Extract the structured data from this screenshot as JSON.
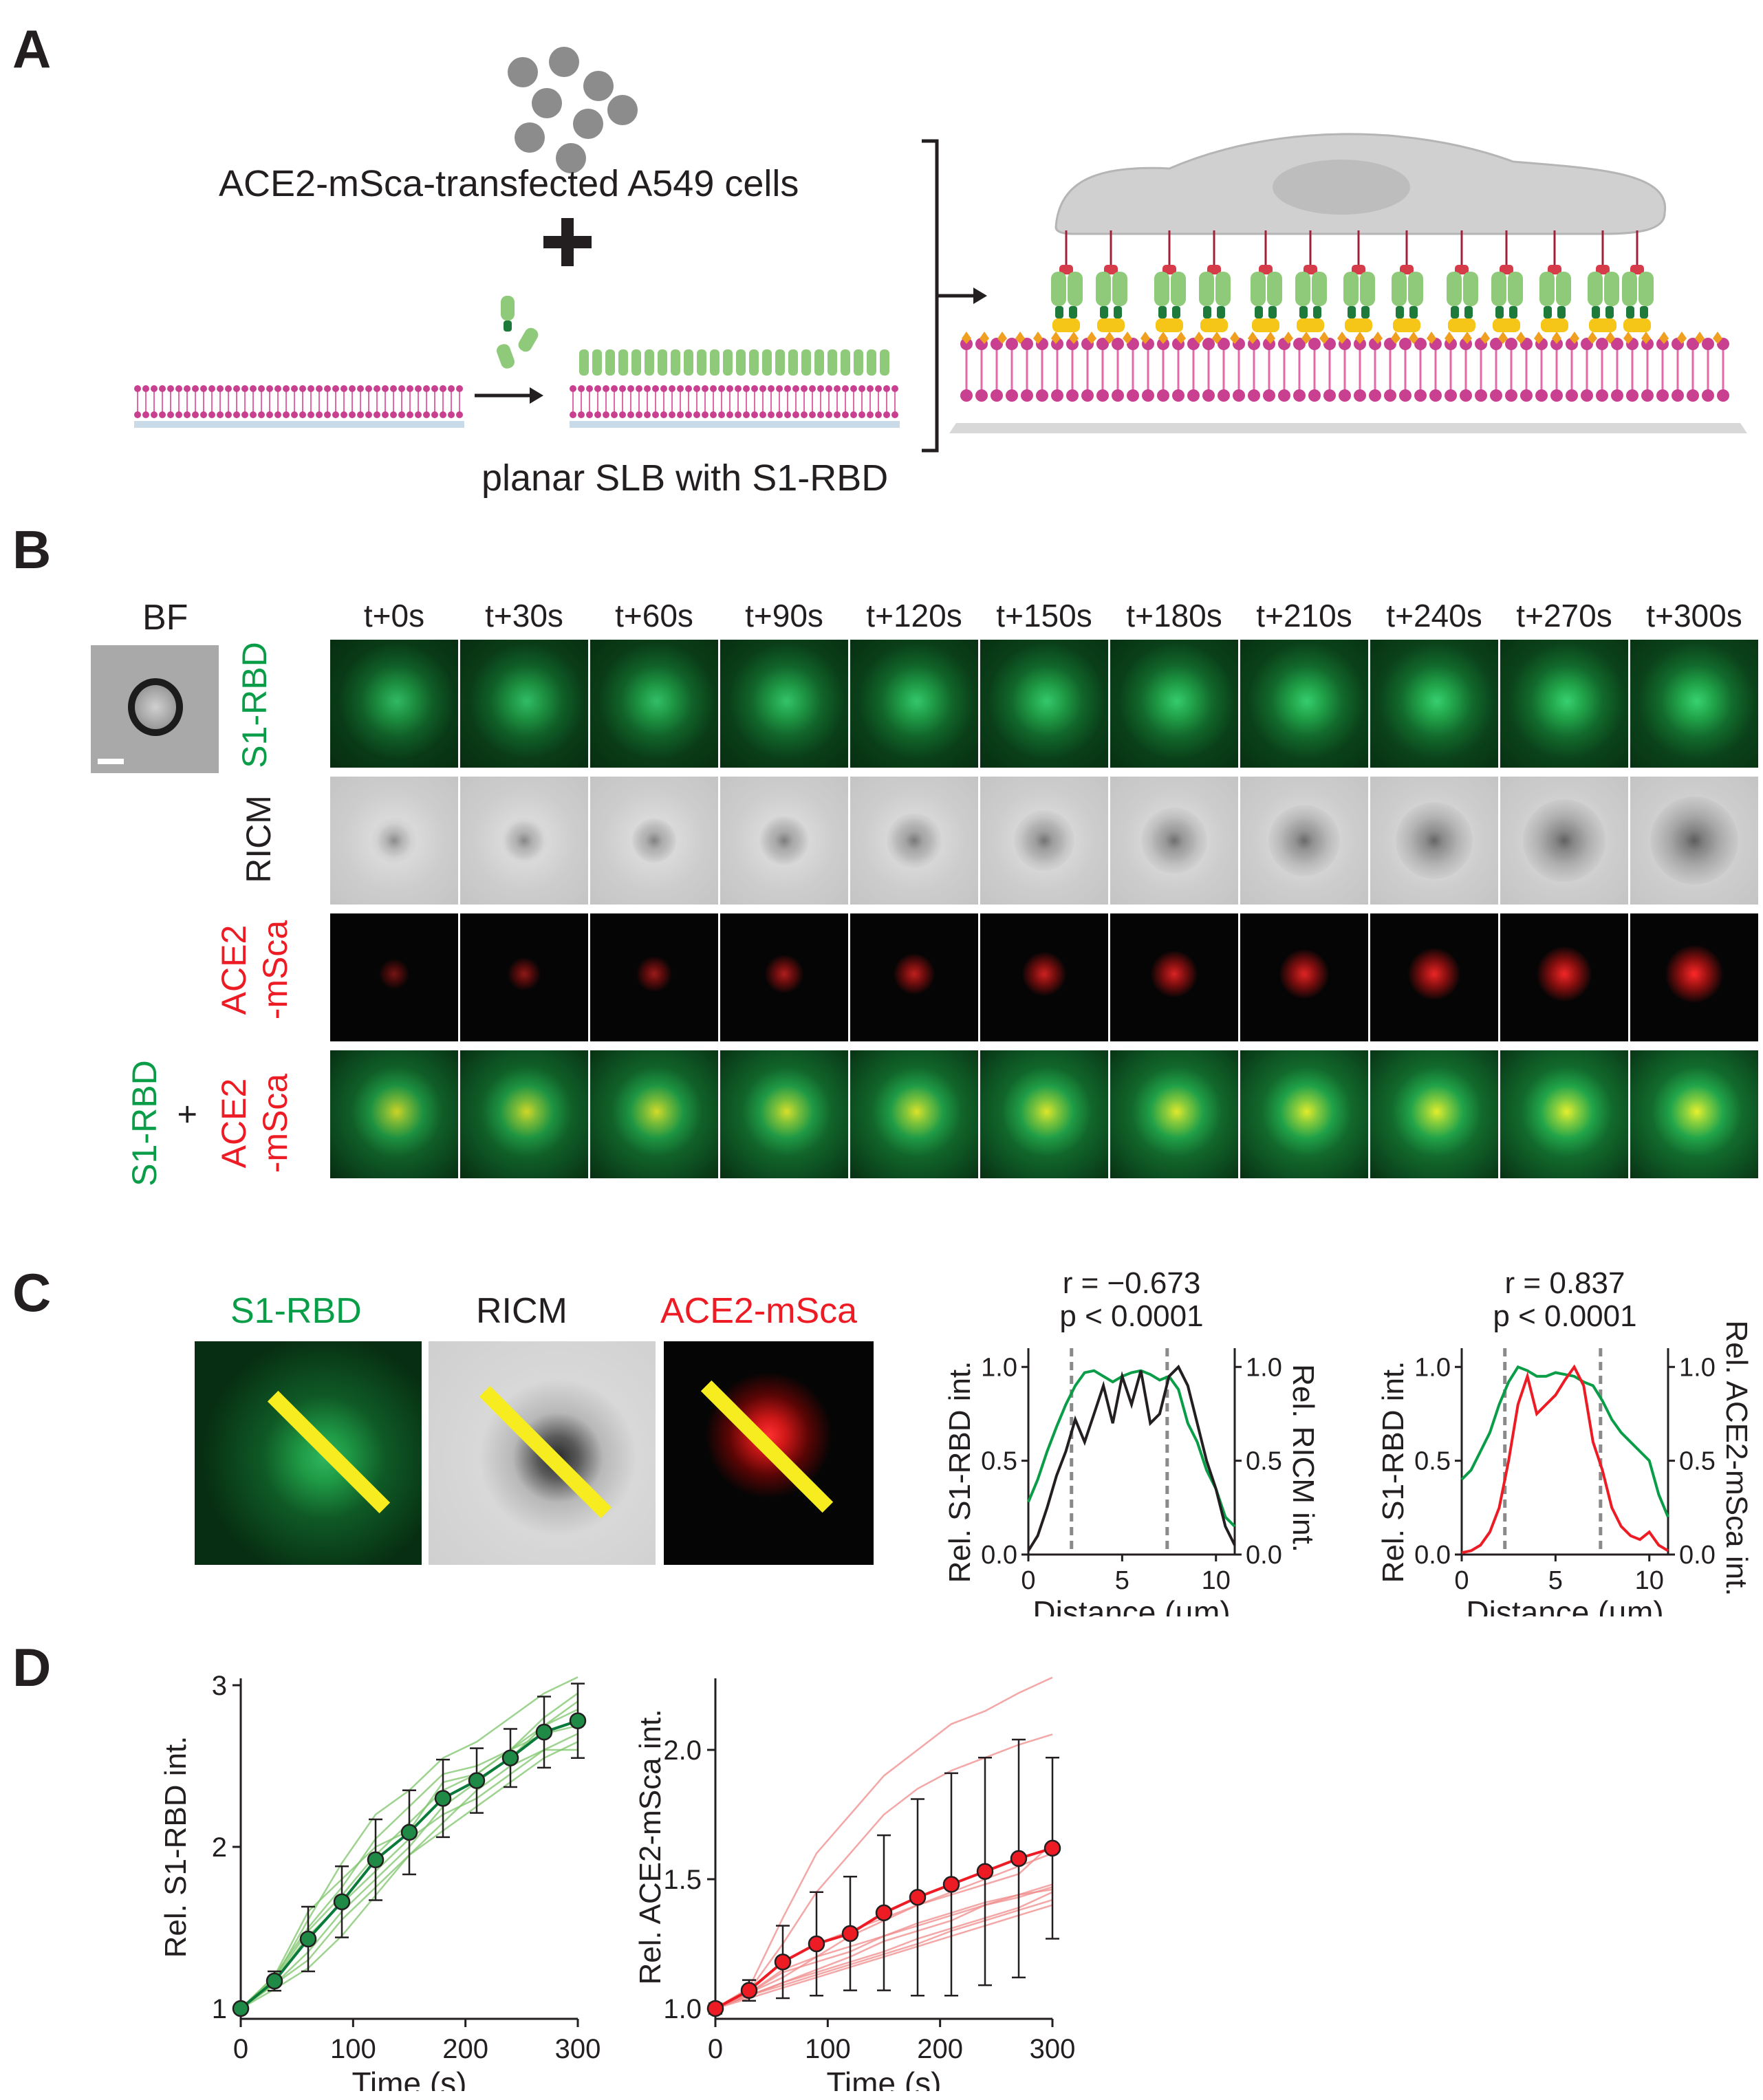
{
  "panel_labels": [
    "A",
    "B",
    "C",
    "D"
  ],
  "panelA": {
    "cells_label": "ACE2-mSca-transfected A549 cells",
    "plus": "+",
    "slb_label": "planar SLB with S1-RBD"
  },
  "panelB": {
    "bf_label": "BF",
    "timepoints": [
      "t+0s",
      "t+30s",
      "t+60s",
      "t+90s",
      "t+120s",
      "t+150s",
      "t+180s",
      "t+210s",
      "t+240s",
      "t+270s",
      "t+300s"
    ],
    "row_s1rbd": "S1-RBD",
    "row_ricm": "RICM",
    "row_ace2_a": "ACE2",
    "row_ace2_b": "-mSca",
    "merge_s1rbd": "S1-RBD",
    "merge_plus": "+",
    "merge_ace2_a": "ACE2",
    "merge_ace2_b": "-mSca",
    "green_intensity": [
      0.55,
      0.6,
      0.64,
      0.7,
      0.74,
      0.78,
      0.82,
      0.85,
      0.88,
      0.9,
      0.92
    ],
    "red_intensity": [
      0.45,
      0.55,
      0.6,
      0.68,
      0.75,
      0.8,
      0.85,
      0.88,
      0.92,
      0.95,
      1.0
    ],
    "colors": {
      "green": "#0a9d48",
      "red": "#ed1c24",
      "black": "#231f20"
    }
  },
  "panelC": {
    "img_labels": [
      "S1-RBD",
      "RICM",
      "ACE2-mSca"
    ],
    "charts": [
      {
        "stat_r": "r = −0.673",
        "stat_p": "p < 0.0001",
        "ylabel_left": "Rel. S1-RBD int.",
        "ylabel_right": "Rel. RICM int.",
        "xlabel": "Distance (µm)",
        "xticks": [
          "0",
          "5",
          "10"
        ],
        "yticks": [
          "0.0",
          "0.5",
          "1.0"
        ],
        "yticks_right": [
          "0.0",
          "0.5",
          "1.0"
        ]
      },
      {
        "stat_r": "r = 0.837",
        "stat_p": "p < 0.0001",
        "ylabel_left": "Rel. S1-RBD int.",
        "ylabel_right": "Rel. ACE2-mSca int.",
        "xlabel": "Distance (µm)",
        "xticks": [
          "0",
          "5",
          "10"
        ],
        "yticks": [
          "0.0",
          "0.5",
          "1.0"
        ],
        "yticks_right": [
          "0.0",
          "0.5",
          "1.0"
        ]
      }
    ]
  },
  "panelD": {
    "charts": [
      {
        "ylabel": "Rel. S1-RBD int.",
        "xlabel": "Time (s)",
        "xticks": [
          "0",
          "100",
          "200",
          "300"
        ],
        "yticks": [
          "1",
          "2",
          "3"
        ]
      },
      {
        "ylabel": "Rel. ACE2-mSca int.",
        "xlabel": "Time (s)",
        "xticks": [
          "0",
          "100",
          "200",
          "300"
        ],
        "yticks": [
          "1.0",
          "1.5",
          "2.0"
        ]
      }
    ]
  },
  "chart_data": [
    {
      "type": "line",
      "title": "",
      "xlabel": "Distance (µm)",
      "ylabel": "Rel. S1-RBD int.",
      "ylabel_right": "Rel. RICM int.",
      "xlim": [
        0,
        11
      ],
      "ylim": [
        0,
        1.1
      ],
      "x": [
        0,
        0.5,
        1,
        1.5,
        2,
        2.5,
        3,
        3.5,
        4,
        4.5,
        5,
        5.5,
        6,
        6.5,
        7,
        7.5,
        8,
        8.5,
        9,
        9.5,
        10,
        10.5,
        11
      ],
      "series": [
        {
          "values": [
            0.28,
            0.4,
            0.55,
            0.68,
            0.8,
            0.9,
            0.97,
            0.98,
            0.95,
            0.92,
            0.95,
            0.97,
            0.98,
            0.96,
            0.93,
            0.95,
            0.88,
            0.7,
            0.6,
            0.45,
            0.35,
            0.2,
            0.15
          ],
          "color": "#0a9d48"
        },
        {
          "values": [
            0.02,
            0.1,
            0.25,
            0.42,
            0.55,
            0.72,
            0.6,
            0.75,
            0.9,
            0.7,
            0.95,
            0.8,
            0.98,
            0.7,
            0.75,
            0.95,
            1.0,
            0.9,
            0.7,
            0.5,
            0.35,
            0.15,
            0.05
          ],
          "color": "#231f20"
        }
      ],
      "vlines": [
        2.3,
        7.4
      ]
    },
    {
      "type": "line",
      "title": "",
      "xlabel": "Distance (µm)",
      "ylabel": "Rel. S1-RBD int.",
      "ylabel_right": "Rel. ACE2-mSca int.",
      "xlim": [
        0,
        11
      ],
      "ylim": [
        0,
        1.1
      ],
      "x": [
        0,
        0.5,
        1,
        1.5,
        2,
        2.5,
        3,
        3.5,
        4,
        4.5,
        5,
        5.5,
        6,
        6.5,
        7,
        7.5,
        8,
        8.5,
        9,
        9.5,
        10,
        10.5,
        11
      ],
      "series": [
        {
          "values": [
            0.4,
            0.45,
            0.55,
            0.65,
            0.8,
            0.92,
            1.0,
            0.98,
            0.95,
            0.95,
            0.97,
            0.96,
            0.95,
            0.92,
            0.9,
            0.82,
            0.72,
            0.65,
            0.6,
            0.55,
            0.5,
            0.32,
            0.2
          ],
          "color": "#0a9d48"
        },
        {
          "values": [
            0.01,
            0.02,
            0.05,
            0.12,
            0.25,
            0.5,
            0.8,
            0.95,
            0.75,
            0.8,
            0.85,
            0.93,
            1.0,
            0.9,
            0.6,
            0.45,
            0.25,
            0.15,
            0.1,
            0.08,
            0.12,
            0.05,
            0.02
          ],
          "color": "#ed1c24"
        }
      ],
      "vlines": [
        2.3,
        7.4
      ]
    },
    {
      "type": "line",
      "title": "",
      "xlabel": "Time (s)",
      "ylabel": "Rel. S1-RBD int.",
      "xlim": [
        0,
        300
      ],
      "ylim": [
        1,
        3
      ],
      "x": [
        0,
        30,
        60,
        90,
        120,
        150,
        180,
        210,
        240,
        270,
        300
      ],
      "series": [
        {
          "name": "mean",
          "values": [
            1.0,
            1.17,
            1.43,
            1.66,
            1.92,
            2.09,
            2.3,
            2.41,
            2.55,
            2.71,
            2.78
          ],
          "err": [
            0.02,
            0.06,
            0.2,
            0.22,
            0.25,
            0.26,
            0.24,
            0.2,
            0.18,
            0.22,
            0.23
          ],
          "color": "#0a7a3a"
        }
      ],
      "traces": [
        [
          1.0,
          1.18,
          1.55,
          1.9,
          2.2,
          2.35,
          2.55,
          2.65,
          2.8,
          2.95,
          3.05
        ],
        [
          1.0,
          1.15,
          1.35,
          1.6,
          1.8,
          2.0,
          2.25,
          2.4,
          2.55,
          2.75,
          2.85
        ],
        [
          1.0,
          1.2,
          1.5,
          1.75,
          2.05,
          2.25,
          2.45,
          2.5,
          2.6,
          2.75,
          2.9
        ],
        [
          1.0,
          1.12,
          1.25,
          1.45,
          1.7,
          1.95,
          2.15,
          2.35,
          2.5,
          2.6,
          2.7
        ],
        [
          1.0,
          1.17,
          1.45,
          1.65,
          1.85,
          2.05,
          2.2,
          2.3,
          2.45,
          2.6,
          2.6
        ],
        [
          1.0,
          1.2,
          1.6,
          1.8,
          2.0,
          2.1,
          2.4,
          2.45,
          2.6,
          2.8,
          2.95
        ],
        [
          1.0,
          1.15,
          1.3,
          1.55,
          1.75,
          1.95,
          2.1,
          2.25,
          2.4,
          2.55,
          2.65
        ],
        [
          1.0,
          1.18,
          1.48,
          1.7,
          1.95,
          2.15,
          2.35,
          2.45,
          2.6,
          2.7,
          2.75
        ]
      ]
    },
    {
      "type": "line",
      "title": "",
      "xlabel": "Time (s)",
      "ylabel": "Rel. ACE2-mSca int.",
      "xlim": [
        0,
        300
      ],
      "ylim": [
        1,
        2.25
      ],
      "x": [
        0,
        30,
        60,
        90,
        120,
        150,
        180,
        210,
        240,
        270,
        300
      ],
      "series": [
        {
          "name": "mean",
          "values": [
            1.0,
            1.07,
            1.18,
            1.25,
            1.29,
            1.37,
            1.43,
            1.48,
            1.53,
            1.58,
            1.62
          ],
          "err": [
            0.02,
            0.04,
            0.14,
            0.2,
            0.22,
            0.3,
            0.38,
            0.43,
            0.44,
            0.46,
            0.35
          ],
          "color": "#ed1c24"
        }
      ],
      "traces": [
        [
          1.0,
          1.08,
          1.35,
          1.6,
          1.75,
          1.9,
          2.0,
          2.1,
          2.15,
          2.22,
          2.28
        ],
        [
          1.0,
          1.07,
          1.25,
          1.45,
          1.6,
          1.75,
          1.85,
          1.92,
          1.97,
          2.02,
          2.06
        ],
        [
          1.0,
          1.06,
          1.12,
          1.2,
          1.28,
          1.34,
          1.4,
          1.45,
          1.5,
          1.55,
          1.6
        ],
        [
          1.0,
          1.05,
          1.1,
          1.15,
          1.2,
          1.26,
          1.3,
          1.34,
          1.4,
          1.44,
          1.48
        ],
        [
          1.0,
          1.06,
          1.15,
          1.2,
          1.24,
          1.28,
          1.32,
          1.36,
          1.4,
          1.43,
          1.47
        ],
        [
          1.0,
          1.04,
          1.08,
          1.12,
          1.16,
          1.2,
          1.24,
          1.28,
          1.32,
          1.36,
          1.4
        ],
        [
          1.0,
          1.05,
          1.1,
          1.14,
          1.18,
          1.22,
          1.27,
          1.31,
          1.35,
          1.39,
          1.45
        ],
        [
          1.0,
          1.06,
          1.14,
          1.18,
          1.22,
          1.28,
          1.33,
          1.37,
          1.41,
          1.44,
          1.46
        ],
        [
          1.0,
          1.05,
          1.09,
          1.13,
          1.17,
          1.21,
          1.25,
          1.3,
          1.34,
          1.38,
          1.42
        ],
        [
          1.0,
          1.07,
          1.18,
          1.25,
          1.3,
          1.35,
          1.4,
          1.44,
          1.48,
          1.52,
          1.64
        ]
      ]
    }
  ]
}
